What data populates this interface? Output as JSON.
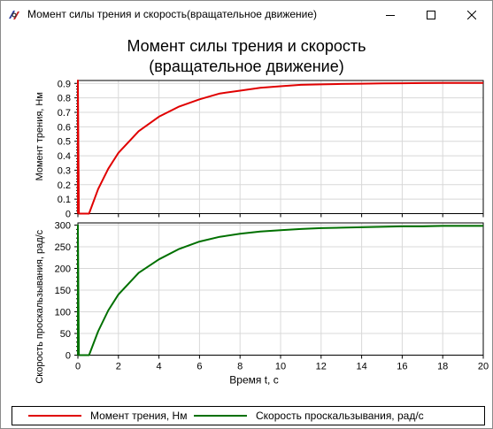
{
  "window": {
    "title": "Момент силы трения и скорость(вращательное движение)",
    "app_icon": "simulation-app-icon",
    "controls": {
      "minimize": "minimize-icon",
      "maximize": "maximize-icon",
      "close": "close-icon"
    }
  },
  "chart": {
    "title_line1": "Момент силы трения и скорость",
    "title_line2": "(вращательное движение)"
  },
  "legend": {
    "items": [
      {
        "label": "Момент трения, Нм",
        "color": "#e00000"
      },
      {
        "label": "Скорость проскальзывания, рад/с",
        "color": "#007000"
      }
    ]
  },
  "chart_data": [
    {
      "type": "line",
      "title": "Момент силы трения и скорость (вращательное движение)",
      "xlabel": "",
      "ylabel": "Момент трения, Нм",
      "xlim": [
        0,
        20
      ],
      "ylim": [
        0,
        0.92
      ],
      "x_ticks": [
        "0",
        "2",
        "4",
        "6",
        "8",
        "10",
        "12",
        "14",
        "16",
        "18",
        "20"
      ],
      "y_ticks": [
        "0",
        "0.1",
        "0.2",
        "0.3",
        "0.4",
        "0.5",
        "0.6",
        "0.7",
        "0.8",
        "0.9"
      ],
      "grid": true,
      "series": [
        {
          "name": "Момент трения, Нм",
          "color": "#e00000",
          "x": [
            0,
            0,
            0.05,
            0.55,
            1,
            1.5,
            2,
            3,
            4,
            5,
            6,
            7,
            8,
            9,
            10,
            11,
            12,
            13,
            14,
            15,
            16,
            17,
            18,
            19,
            20
          ],
          "y": [
            0,
            0.92,
            0,
            0,
            0.17,
            0.31,
            0.42,
            0.57,
            0.67,
            0.74,
            0.79,
            0.83,
            0.85,
            0.87,
            0.88,
            0.89,
            0.893,
            0.896,
            0.898,
            0.9,
            0.901,
            0.902,
            0.903,
            0.903,
            0.903
          ]
        }
      ]
    },
    {
      "type": "line",
      "xlabel": "Время t, c",
      "ylabel": "Скорость проскальзывания, рад/с",
      "xlim": [
        0,
        20
      ],
      "ylim": [
        0,
        305
      ],
      "x_ticks": [
        "0",
        "2",
        "4",
        "6",
        "8",
        "10",
        "12",
        "14",
        "16",
        "18",
        "20"
      ],
      "y_ticks": [
        "0",
        "50",
        "100",
        "150",
        "200",
        "250",
        "300"
      ],
      "grid": true,
      "series": [
        {
          "name": "Скорость проскальзывания, рад/с",
          "color": "#007000",
          "x": [
            0,
            0,
            0.05,
            0.55,
            1,
            1.5,
            2,
            3,
            4,
            5,
            6,
            7,
            8,
            9,
            10,
            11,
            12,
            13,
            14,
            15,
            16,
            17,
            18,
            19,
            20
          ],
          "y": [
            0,
            300,
            0,
            0,
            55,
            103,
            140,
            190,
            221,
            245,
            262,
            273,
            280,
            285,
            288,
            291,
            293,
            294,
            295,
            296,
            297,
            297,
            298,
            298,
            298
          ]
        }
      ]
    }
  ]
}
